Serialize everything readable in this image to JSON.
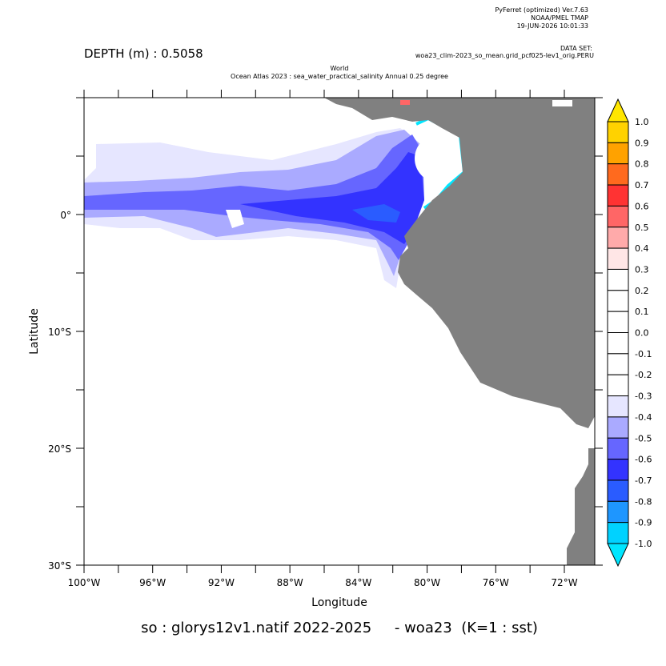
{
  "header": {
    "software": "PyFerret (optimized) Ver.7.63",
    "organization": "NOAA/PMEL TMAP",
    "date": "19-JUN-2026 10:01:33",
    "dataset_label": "DATA SET:",
    "dataset": "woa23_clim-2023_so_mean.grid_pcf025-lev1_orig.PERU",
    "depth": "DEPTH (m) : 0.5058",
    "title_line1": "World",
    "title_line2": "Ocean Atlas 2023 : sea_water_practical_salinity Annual  0.25 degree"
  },
  "map": {
    "x_label": "Longitude",
    "y_label": "Latitude",
    "x_tick_labels": [
      "100°W",
      "96°W",
      "92°W",
      "88°W",
      "84°W",
      "80°W",
      "76°W",
      "72°W"
    ],
    "y_tick_labels": [
      "0°",
      "10°S",
      "20°S",
      "30°S"
    ]
  },
  "colorbar": {
    "labels": [
      "1.0",
      "0.9",
      "0.8",
      "0.7",
      "0.6",
      "0.5",
      "0.4",
      "0.3",
      "0.2",
      "0.1",
      "0.0",
      "-0.1",
      "-0.2",
      "-0.3",
      "-0.4",
      "-0.5",
      "-0.6",
      "-0.7",
      "-0.8",
      "-0.9",
      "-1.0"
    ],
    "colors": [
      "#ffd200",
      "#ffa200",
      "#ff6a1e",
      "#ff3333",
      "#ff6666",
      "#ffaaaa",
      "#ffe6e6",
      "#ffffff",
      "#ffffff",
      "#ffffff",
      "#ffffff",
      "#ffffff",
      "#ffffff",
      "#e6e6ff",
      "#aaaaff",
      "#6666ff",
      "#3333ff",
      "#2a5cff",
      "#1e96ff",
      "#00d2ff"
    ],
    "over_color": "#ffe600",
    "under_color": "#00e6ff"
  },
  "footer": "so : glorys12v1.natif 2022-2025     - woa23  (K=1 : sst)"
}
